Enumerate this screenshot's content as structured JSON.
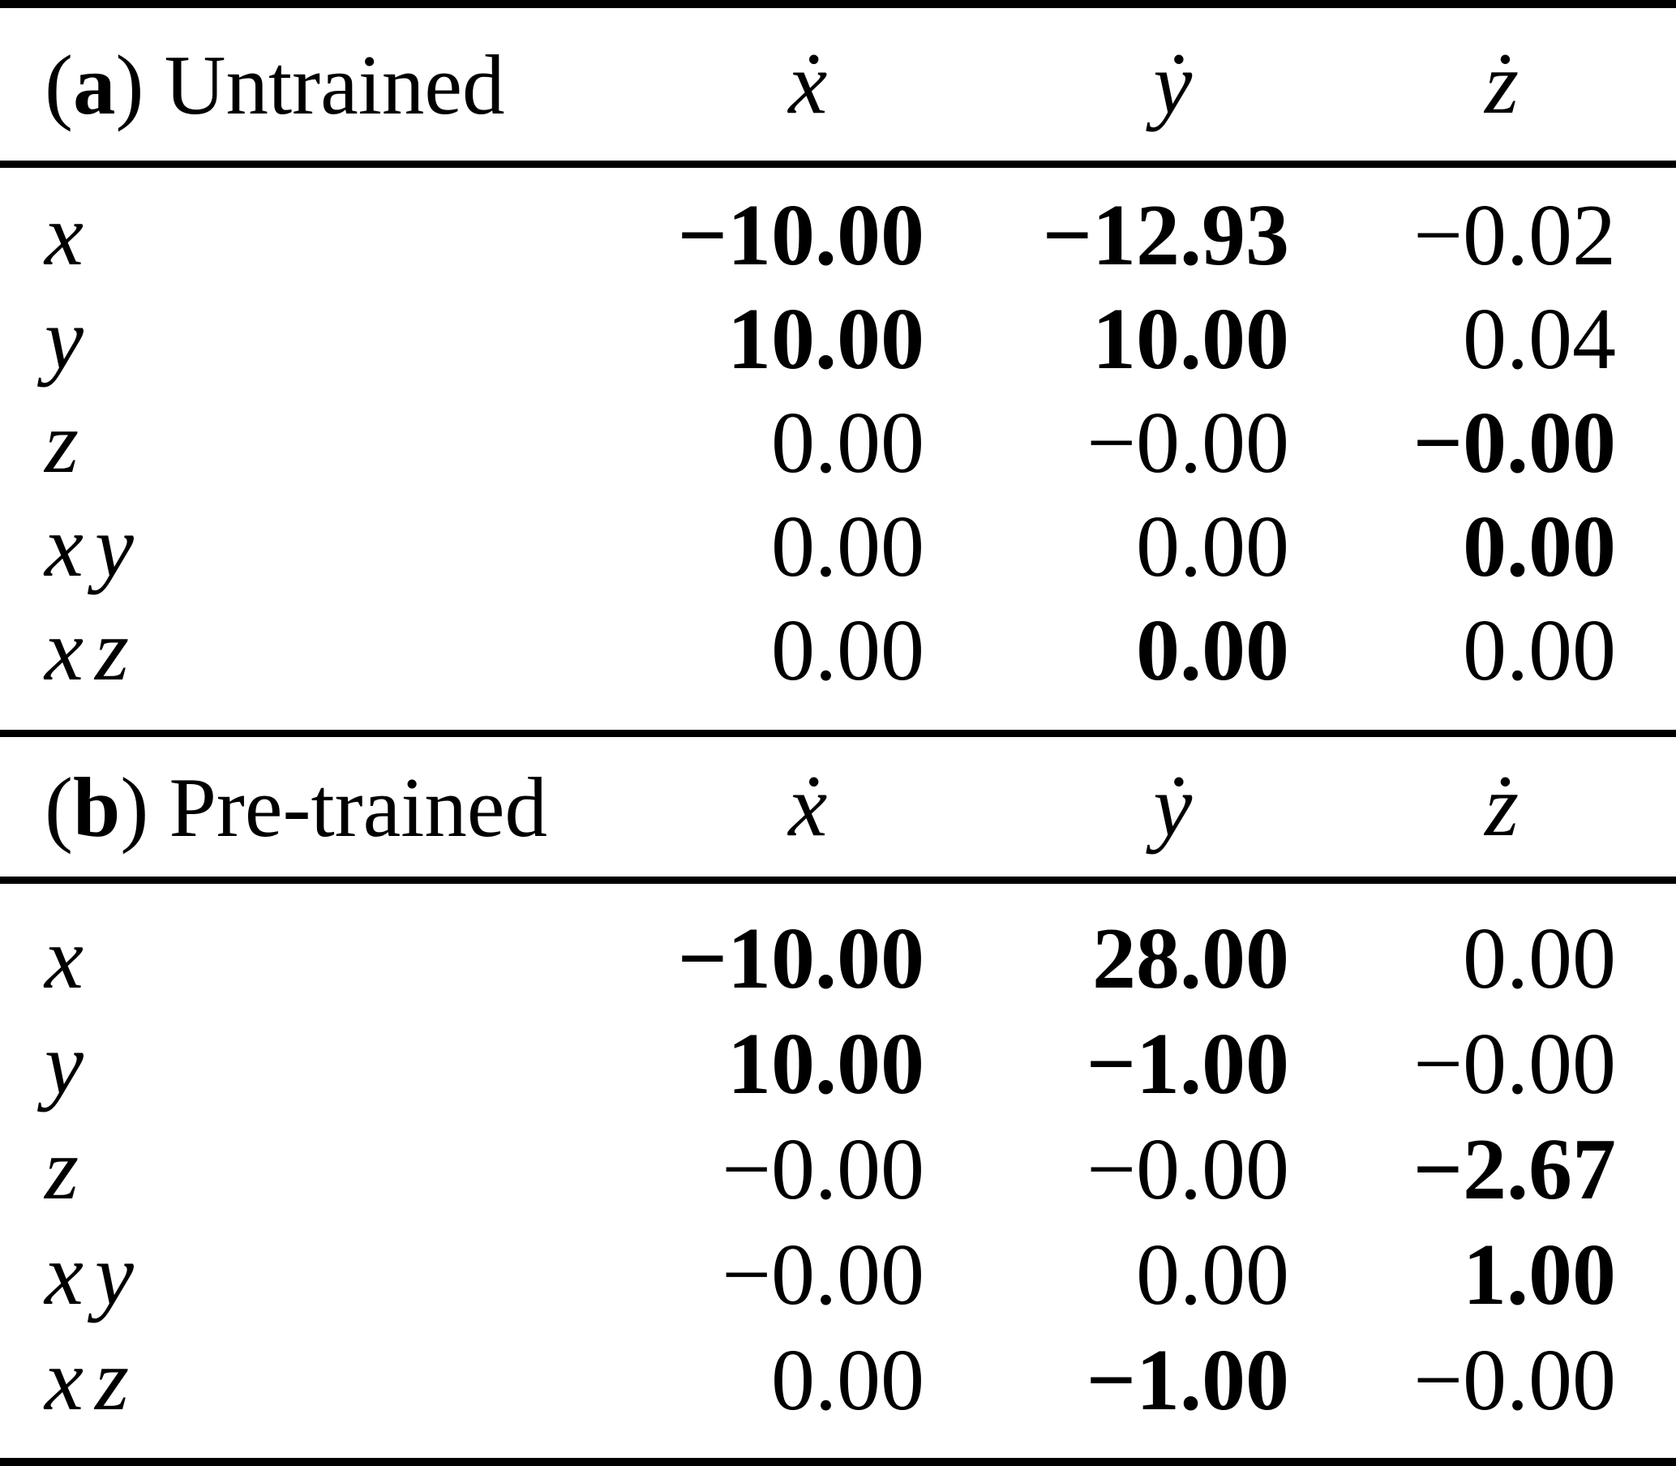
{
  "page": {
    "background_color": "#ffffff",
    "text_color": "#000000"
  },
  "tables": [
    {
      "caption_prefix_open": "(",
      "caption_marker": "a",
      "caption_prefix_close": ")",
      "caption": "Untrained",
      "columns": [
        "ẋ",
        "ẏ",
        "ż"
      ],
      "rows": [
        {
          "term": "x",
          "values": [
            "−10.00",
            "−12.93",
            "−0.02"
          ],
          "bold": [
            true,
            true,
            false
          ]
        },
        {
          "term": "y",
          "values": [
            "10.00",
            "10.00",
            "0.04"
          ],
          "bold": [
            true,
            true,
            false
          ]
        },
        {
          "term": "z",
          "values": [
            "0.00",
            "−0.00",
            "−0.00"
          ],
          "bold": [
            false,
            false,
            true
          ]
        },
        {
          "term": "xy",
          "values": [
            "0.00",
            "0.00",
            "0.00"
          ],
          "bold": [
            false,
            false,
            true
          ]
        },
        {
          "term": "xz",
          "values": [
            "0.00",
            "0.00",
            "0.00"
          ],
          "bold": [
            false,
            true,
            false
          ]
        }
      ]
    },
    {
      "caption_prefix_open": "(",
      "caption_marker": "b",
      "caption_prefix_close": ")",
      "caption": "Pre-trained",
      "columns": [
        "ẋ",
        "ẏ",
        "ż"
      ],
      "rows": [
        {
          "term": "x",
          "values": [
            "−10.00",
            "28.00",
            "0.00"
          ],
          "bold": [
            true,
            true,
            false
          ]
        },
        {
          "term": "y",
          "values": [
            "10.00",
            "−1.00",
            "−0.00"
          ],
          "bold": [
            true,
            true,
            false
          ]
        },
        {
          "term": "z",
          "values": [
            "−0.00",
            "−0.00",
            "−2.67"
          ],
          "bold": [
            false,
            false,
            true
          ]
        },
        {
          "term": "xy",
          "values": [
            "−0.00",
            "0.00",
            "1.00"
          ],
          "bold": [
            false,
            false,
            true
          ]
        },
        {
          "term": "xz",
          "values": [
            "0.00",
            "−1.00",
            "−0.00"
          ],
          "bold": [
            false,
            true,
            false
          ]
        }
      ]
    }
  ]
}
